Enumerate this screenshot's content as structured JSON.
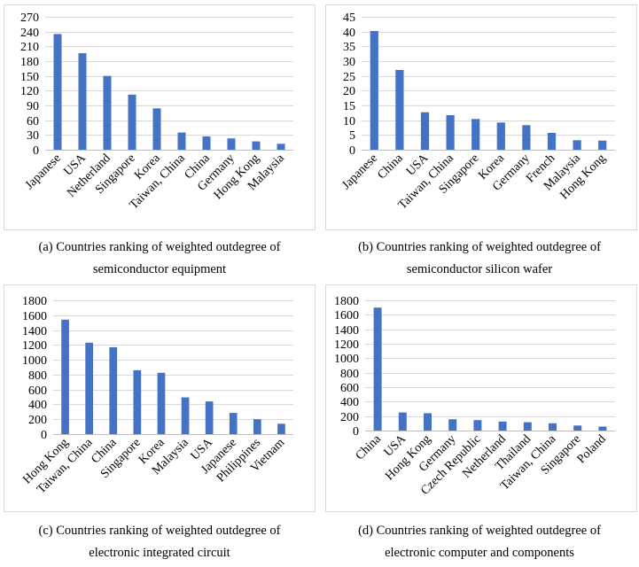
{
  "chart_data": [
    {
      "type": "bar",
      "caption_line1": "(a) Countries ranking of weighted outdegree of",
      "caption_line2": "semiconductor equipment",
      "categories": [
        "Japanese",
        "USA",
        "Netherland",
        "Singapore",
        "Korea",
        "Taiwan, China",
        "China",
        "Germany",
        "Hong Kong",
        "Malaysia"
      ],
      "values": [
        235,
        196,
        150,
        112,
        84,
        35,
        27,
        23,
        17,
        12
      ],
      "ylim": [
        0,
        270
      ],
      "yticks": [
        "0",
        "30",
        "60",
        "90",
        "120",
        "150",
        "180",
        "210",
        "240",
        "270"
      ],
      "grid": true,
      "bar_color": "#4472c4"
    },
    {
      "type": "bar",
      "caption_line1": "(b) Countries ranking of weighted outdegree of",
      "caption_line2": "semiconductor silicon wafer",
      "categories": [
        "Japanese",
        "China",
        "USA",
        "Taiwan, China",
        "Singapore",
        "Korea",
        "Germany",
        "French",
        "Malaysia",
        "Hong Kong"
      ],
      "values": [
        40.2,
        27,
        12.7,
        11.7,
        10.4,
        9.2,
        8.3,
        5.7,
        3.2,
        3.1
      ],
      "ylim": [
        0,
        45
      ],
      "yticks": [
        "0",
        "5",
        "10",
        "15",
        "20",
        "25",
        "30",
        "35",
        "40",
        "45"
      ],
      "grid": true,
      "bar_color": "#4472c4"
    },
    {
      "type": "bar",
      "caption_line1": "(c) Countries ranking of weighted outdegree of",
      "caption_line2": "electronic integrated circuit",
      "categories": [
        "Hong Kong",
        "Taiwan, China",
        "China",
        "Singapore",
        "Korea",
        "Malaysia",
        "USA",
        "Japanese",
        "Philippines",
        "Vietnam"
      ],
      "values": [
        1540,
        1230,
        1170,
        860,
        825,
        495,
        440,
        285,
        200,
        140
      ],
      "ylim": [
        0,
        1800
      ],
      "yticks": [
        "0",
        "200",
        "400",
        "600",
        "800",
        "1000",
        "1200",
        "1400",
        "1600",
        "1800"
      ],
      "grid": true,
      "bar_color": "#4472c4"
    },
    {
      "type": "bar",
      "caption_line1": "(d) Countries ranking of weighted outdegree of",
      "caption_line2": "electronic computer and components",
      "categories": [
        "China",
        "USA",
        "Hong Kong",
        "Germany",
        "Czech Republic",
        "Netherland",
        "Thailand",
        "Taiwan, China",
        "Singapore",
        "Poland"
      ],
      "values": [
        1700,
        250,
        240,
        155,
        145,
        125,
        115,
        100,
        70,
        55
      ],
      "ylim": [
        0,
        1800
      ],
      "yticks": [
        "0",
        "200",
        "400",
        "600",
        "800",
        "1000",
        "1200",
        "1400",
        "1600",
        "1800"
      ],
      "grid": true,
      "bar_color": "#4472c4"
    }
  ]
}
